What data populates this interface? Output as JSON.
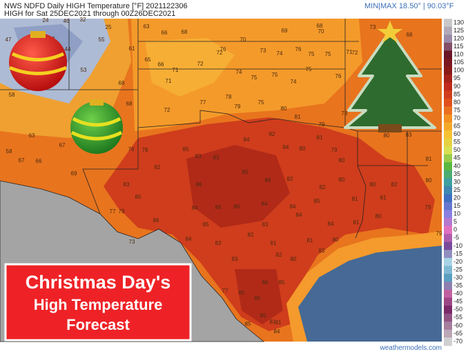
{
  "header": {
    "line1": "NWS NDFD Daily HIGH Temperature [°F]  2021122306",
    "line2": "HIGH for Sat 25DEC2021 through 00Z26DEC2021",
    "minmax": "MIN|MAX 18.50° | 90.03°F"
  },
  "colorbar": {
    "ticks": [
      130,
      125,
      120,
      115,
      110,
      105,
      100,
      95,
      90,
      85,
      80,
      75,
      70,
      65,
      60,
      55,
      50,
      45,
      40,
      35,
      30,
      25,
      20,
      15,
      10,
      5,
      0,
      -5,
      -10,
      -15,
      -20,
      -25,
      -30,
      -35,
      -40,
      -45,
      -50,
      -55,
      -60,
      -65,
      -70
    ]
  },
  "stations": [
    24,
    46,
    32,
    25,
    63,
    66,
    68,
    47,
    43,
    44,
    55,
    61,
    70,
    69,
    68,
    70,
    73,
    68,
    65,
    66,
    71,
    72,
    72,
    76,
    73,
    74,
    76,
    75,
    75,
    71,
    72,
    53,
    68,
    71,
    74,
    75,
    75,
    74,
    75,
    76,
    50,
    58,
    68,
    72,
    77,
    78,
    79,
    75,
    80,
    81,
    79,
    78,
    80,
    83,
    80,
    63,
    58,
    67,
    66,
    67,
    76,
    78,
    82,
    85,
    83,
    83,
    84,
    82,
    84,
    80,
    81,
    79,
    80,
    69,
    83,
    85,
    86,
    85,
    88,
    82,
    82,
    80,
    80,
    82,
    81,
    80,
    77,
    79,
    86,
    84,
    86,
    86,
    84,
    84,
    85,
    81,
    81,
    79,
    85,
    83,
    84,
    84,
    81,
    80,
    79,
    84,
    83,
    82,
    81,
    81,
    80,
    73,
    83,
    82,
    83,
    80,
    77,
    85,
    86,
    85,
    85,
    85,
    81,
    85,
    84,
    81
  ],
  "banner": {
    "line1": "Christmas Day's",
    "line2": "High Temperature",
    "line3": "Forecast"
  },
  "credit": "weathermodels.com"
}
